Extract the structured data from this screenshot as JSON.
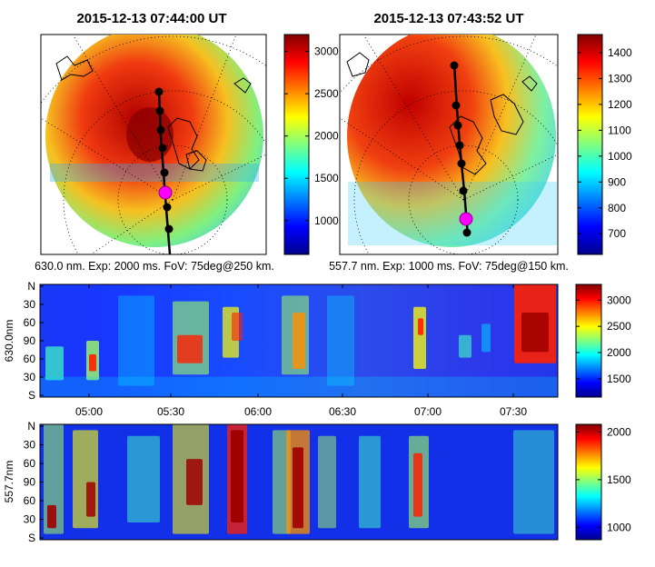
{
  "chart_data": [
    {
      "type": "heatmap",
      "title": "2015-12-13 07:44:00 UT",
      "caption": "630.0 nm. Exp: 2000 ms. FoV: 75deg@250 km.",
      "colorbar_ticks": [
        1000,
        1500,
        2000,
        2500,
        3000
      ],
      "colorbar_range": [
        600,
        3200
      ]
    },
    {
      "type": "heatmap",
      "title": "2015-12-13 07:43:52 UT",
      "caption": "557.7 nm. Exp: 1000 ms. FoV: 75deg@150 km.",
      "colorbar_ticks": [
        700,
        800,
        900,
        1000,
        1100,
        1200,
        1300,
        1400
      ],
      "colorbar_range": [
        620,
        1470
      ]
    },
    {
      "type": "heatmap",
      "ylabel": "630.0nm",
      "y_ticks": [
        "N",
        "30",
        "60",
        "90",
        "60",
        "30",
        "S"
      ],
      "x_ticks": [
        "05:00",
        "05:30",
        "06:00",
        "06:30",
        "07:00",
        "07:30"
      ],
      "colorbar_ticks": [
        1500,
        2000,
        2500,
        3000
      ],
      "colorbar_range": [
        1150,
        3300
      ]
    },
    {
      "type": "heatmap",
      "ylabel": "557.7nm",
      "y_ticks": [
        "N",
        "30",
        "60",
        "90",
        "60",
        "30",
        "S"
      ],
      "colorbar_ticks": [
        1000,
        1500,
        2000
      ],
      "colorbar_range": [
        870,
        2080
      ]
    }
  ]
}
